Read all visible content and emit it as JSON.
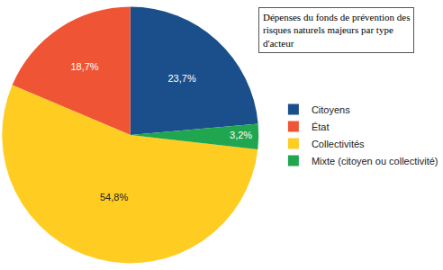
{
  "chart_data": {
    "type": "pie",
    "title": "Dépenses du fonds de prévention des risques naturels majeurs par type d'acteur",
    "categories": [
      "Citoyens",
      "État",
      "Collectivités",
      "Mixte (citoyen ou collectivité)"
    ],
    "values": [
      23.7,
      18.7,
      54.8,
      3.2
    ],
    "value_labels": [
      "23,7%",
      "18,7%",
      "54,8%",
      "3,2%"
    ],
    "colors": [
      "#1b4f8c",
      "#ef5535",
      "#ffcc22",
      "#21a650"
    ],
    "data_labels": true,
    "legend": "right"
  }
}
